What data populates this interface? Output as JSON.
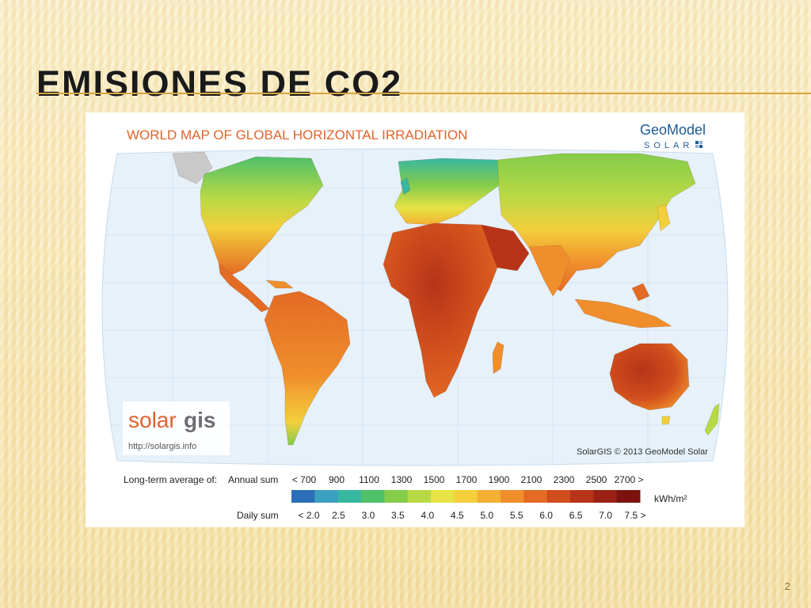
{
  "slide": {
    "title": "EMISIONES DE CO2",
    "page_number": "2"
  },
  "map": {
    "title": "WORLD MAP OF GLOBAL HORIZONTAL IRRADIATION",
    "brand_top": "GeoModel",
    "brand_bottom": "SOLAR",
    "logo_text_solar": "solar",
    "logo_text_gis": "gis",
    "logo_url": "http://solargis.info",
    "copyright": "SolarGIS © 2013 GeoModel Solar",
    "legend": {
      "caption": "Long-term average of:",
      "annual_label": "Annual sum",
      "daily_label": "Daily sum",
      "unit": "kWh/m²",
      "annual_ticks": [
        "< 700",
        "900",
        "1100",
        "1300",
        "1500",
        "1700",
        "1900",
        "2100",
        "2300",
        "2500",
        "2700 >"
      ],
      "daily_ticks": [
        "< 2.0",
        "2.5",
        "3.0",
        "3.5",
        "4.0",
        "4.5",
        "5.0",
        "5.5",
        "6.0",
        "6.5",
        "7.0",
        "7.5 >"
      ],
      "colors": [
        "#2b6fb8",
        "#3a9fc0",
        "#38b7a0",
        "#4fc06a",
        "#84cc4a",
        "#b7d945",
        "#e7e345",
        "#f3cf3c",
        "#f3b032",
        "#f08e2c",
        "#e36b24",
        "#d04d1d",
        "#b73418",
        "#9a2113",
        "#7c120f"
      ]
    }
  }
}
